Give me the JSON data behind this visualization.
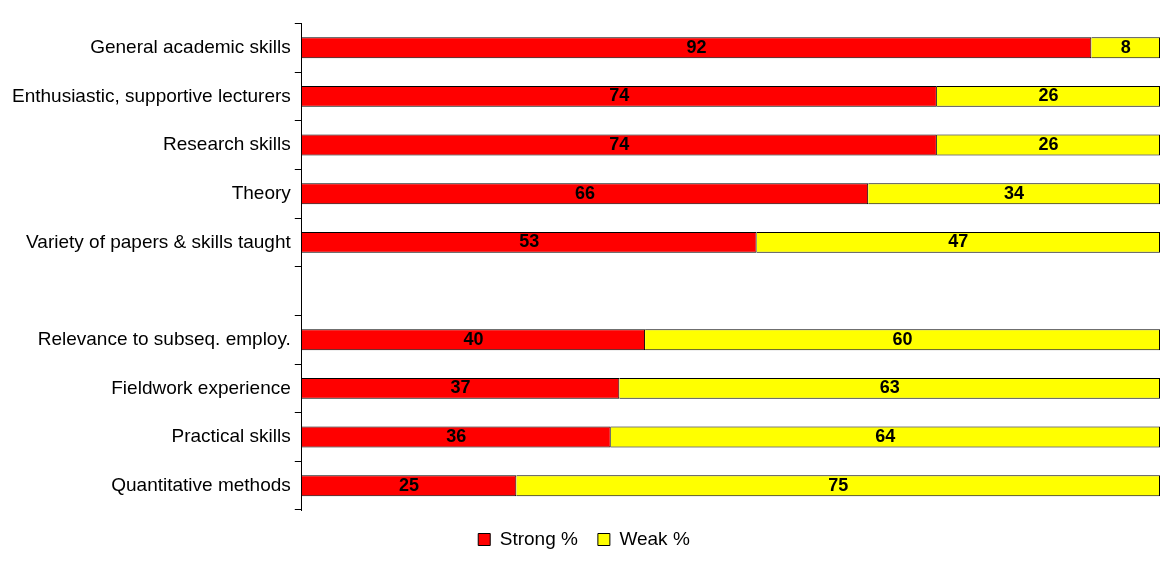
{
  "chart_data": {
    "type": "bar",
    "orientation": "horizontal",
    "stacked": true,
    "categories": [
      "General academic skills",
      "Enthusiastic, supportive lecturers",
      "Research skills",
      "Theory",
      "Variety of papers & skills taught",
      null,
      "Relevance to subseq. employ.",
      "Fieldwork experience",
      "Practical skills",
      "Quantitative methods"
    ],
    "series": [
      {
        "name": "Strong %",
        "color": "#ff0000",
        "values": [
          92,
          74,
          74,
          66,
          53,
          null,
          40,
          37,
          36,
          25
        ]
      },
      {
        "name": "Weak %",
        "color": "#ffff00",
        "values": [
          8,
          26,
          26,
          34,
          47,
          null,
          60,
          63,
          64,
          75
        ]
      }
    ],
    "xlim": [
      0,
      100
    ],
    "tick_labels": "y",
    "data_labels": true,
    "legend": "bottom",
    "grid": false
  }
}
